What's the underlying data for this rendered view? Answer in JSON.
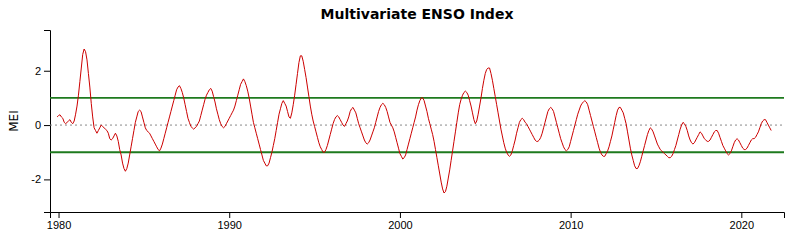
{
  "chart_data": {
    "type": "line",
    "title": "Multivariate ENSO Index",
    "ylabel": "MEI",
    "xlim": [
      1979.5,
      2022.5
    ],
    "ylim": [
      -3.2,
      3.5
    ],
    "xticks": [
      1980,
      1990,
      2000,
      2010,
      2020
    ],
    "yticks": [
      -2,
      0,
      2
    ],
    "grid": false,
    "color": "#cc0000",
    "hlines": [
      {
        "value": 0,
        "color": "#888888",
        "line_style": "dotted"
      },
      {
        "value": 1.0,
        "color": "#1e7a1e",
        "line_style": "solid"
      },
      {
        "value": -1.0,
        "color": "#1e7a1e",
        "line_style": "solid"
      }
    ],
    "x": [
      1979.9167,
      1980,
      1980.0834,
      1980.1667,
      1980.25,
      1980.3334,
      1980.4167,
      1980.5,
      1980.5834,
      1980.6667,
      1980.75,
      1980.8334,
      1980.9167,
      1981,
      1981.0834,
      1981.1667,
      1981.25,
      1981.3334,
      1981.4167,
      1981.5,
      1981.5834,
      1981.6667,
      1981.75,
      1981.8334,
      1981.9167,
      1982,
      1982.0834,
      1982.1667,
      1982.25,
      1982.3334,
      1982.4167,
      1982.5,
      1982.5834,
      1982.6667,
      1982.75,
      1982.8334,
      1982.9167,
      1983,
      1983.0834,
      1983.1667,
      1983.25,
      1983.3334,
      1983.4167,
      1983.5,
      1983.5834,
      1983.6667,
      1983.75,
      1983.8334,
      1983.9167,
      1984,
      1984.0834,
      1984.1667,
      1984.25,
      1984.3334,
      1984.4167,
      1984.5,
      1984.5834,
      1984.6667,
      1984.75,
      1984.8334,
      1984.9167,
      1985,
      1985.0834,
      1985.1667,
      1985.25,
      1985.3334,
      1985.4167,
      1985.5,
      1985.5834,
      1985.6667,
      1985.75,
      1985.8334,
      1985.9167,
      1986,
      1986.0834,
      1986.1667,
      1986.25,
      1986.3334,
      1986.4167,
      1986.5,
      1986.5834,
      1986.6667,
      1986.75,
      1986.8334,
      1986.9167,
      1987,
      1987.0834,
      1987.1667,
      1987.25,
      1987.3334,
      1987.4167,
      1987.5,
      1987.5834,
      1987.6667,
      1987.75,
      1987.8334,
      1987.9167,
      1988,
      1988.0834,
      1988.1667,
      1988.25,
      1988.3334,
      1988.4167,
      1988.5,
      1988.5834,
      1988.6667,
      1988.75,
      1988.8334,
      1988.9167,
      1989,
      1989.0834,
      1989.1667,
      1989.25,
      1989.3334,
      1989.4167,
      1989.5,
      1989.5834,
      1989.6667,
      1989.75,
      1989.8334,
      1989.9167,
      1990,
      1990.0834,
      1990.1667,
      1990.25,
      1990.3334,
      1990.4167,
      1990.5,
      1990.5834,
      1990.6667,
      1990.75,
      1990.8334,
      1990.9167,
      1991,
      1991.0834,
      1991.1667,
      1991.25,
      1991.3334,
      1991.4167,
      1991.5,
      1991.5834,
      1991.6667,
      1991.75,
      1991.8334,
      1991.9167,
      1992,
      1992.0834,
      1992.1667,
      1992.25,
      1992.3334,
      1992.4167,
      1992.5,
      1992.5834,
      1992.6667,
      1992.75,
      1992.8334,
      1992.9167,
      1993,
      1993.0834,
      1993.1667,
      1993.25,
      1993.3334,
      1993.4167,
      1993.5,
      1993.5834,
      1993.6667,
      1993.75,
      1993.8334,
      1993.9167,
      1994,
      1994.0834,
      1994.1667,
      1994.25,
      1994.3334,
      1994.4167,
      1994.5,
      1994.5834,
      1994.6667,
      1994.75,
      1994.8334,
      1994.9167,
      1995,
      1995.0834,
      1995.1667,
      1995.25,
      1995.3334,
      1995.4167,
      1995.5,
      1995.5834,
      1995.6667,
      1995.75,
      1995.8334,
      1995.9167,
      1996,
      1996.0834,
      1996.1667,
      1996.25,
      1996.3334,
      1996.4167,
      1996.5,
      1996.5834,
      1996.6667,
      1996.75,
      1996.8334,
      1996.9167,
      1997,
      1997.0834,
      1997.1667,
      1997.25,
      1997.3334,
      1997.4167,
      1997.5,
      1997.5834,
      1997.6667,
      1997.75,
      1997.8334,
      1997.9167,
      1998,
      1998.0834,
      1998.1667,
      1998.25,
      1998.3334,
      1998.4167,
      1998.5,
      1998.5834,
      1998.6667,
      1998.75,
      1998.8334,
      1998.9167,
      1999,
      1999.0834,
      1999.1667,
      1999.25,
      1999.3334,
      1999.4167,
      1999.5,
      1999.5834,
      1999.6667,
      1999.75,
      1999.8334,
      1999.9167,
      2000,
      2000.0834,
      2000.1667,
      2000.25,
      2000.3334,
      2000.4167,
      2000.5,
      2000.5834,
      2000.6667,
      2000.75,
      2000.8334,
      2000.9167,
      2001,
      2001.0834,
      2001.1667,
      2001.25,
      2001.3334,
      2001.4167,
      2001.5,
      2001.5834,
      2001.6667,
      2001.75,
      2001.8334,
      2001.9167,
      2002,
      2002.0834,
      2002.1667,
      2002.25,
      2002.3334,
      2002.4167,
      2002.5,
      2002.5834,
      2002.6667,
      2002.75,
      2002.8334,
      2002.9167,
      2003,
      2003.0834,
      2003.1667,
      2003.25,
      2003.3334,
      2003.4167,
      2003.5,
      2003.5834,
      2003.6667,
      2003.75,
      2003.8334,
      2003.9167,
      2004,
      2004.0834,
      2004.1667,
      2004.25,
      2004.3334,
      2004.4167,
      2004.5,
      2004.5834,
      2004.6667,
      2004.75,
      2004.8334,
      2004.9167,
      2005,
      2005.0834,
      2005.1667,
      2005.25,
      2005.3334,
      2005.4167,
      2005.5,
      2005.5834,
      2005.6667,
      2005.75,
      2005.8334,
      2005.9167,
      2006,
      2006.0834,
      2006.1667,
      2006.25,
      2006.3334,
      2006.4167,
      2006.5,
      2006.5834,
      2006.6667,
      2006.75,
      2006.8334,
      2006.9167,
      2007,
      2007.0834,
      2007.1667,
      2007.25,
      2007.3334,
      2007.4167,
      2007.5,
      2007.5834,
      2007.6667,
      2007.75,
      2007.8334,
      2007.9167,
      2008,
      2008.0834,
      2008.1667,
      2008.25,
      2008.3334,
      2008.4167,
      2008.5,
      2008.5834,
      2008.6667,
      2008.75,
      2008.8334,
      2008.9167,
      2009,
      2009.0834,
      2009.1667,
      2009.25,
      2009.3334,
      2009.4167,
      2009.5,
      2009.5834,
      2009.6667,
      2009.75,
      2009.8334,
      2009.9167,
      2010,
      2010.0834,
      2010.1667,
      2010.25,
      2010.3334,
      2010.4167,
      2010.5,
      2010.5834,
      2010.6667,
      2010.75,
      2010.8334,
      2010.9167,
      2011,
      2011.0834,
      2011.1667,
      2011.25,
      2011.3334,
      2011.4167,
      2011.5,
      2011.5834,
      2011.6667,
      2011.75,
      2011.8334,
      2011.9167,
      2012,
      2012.0834,
      2012.1667,
      2012.25,
      2012.3334,
      2012.4167,
      2012.5,
      2012.5834,
      2012.6667,
      2012.75,
      2012.8334,
      2012.9167,
      2013,
      2013.0834,
      2013.1667,
      2013.25,
      2013.3334,
      2013.4167,
      2013.5,
      2013.5834,
      2013.6667,
      2013.75,
      2013.8334,
      2013.9167,
      2014,
      2014.0834,
      2014.1667,
      2014.25,
      2014.3334,
      2014.4167,
      2014.5,
      2014.5834,
      2014.6667,
      2014.75,
      2014.8334,
      2014.9167,
      2015,
      2015.0834,
      2015.1667,
      2015.25,
      2015.3334,
      2015.4167,
      2015.5,
      2015.5834,
      2015.6667,
      2015.75,
      2015.8334,
      2015.9167,
      2016,
      2016.0834,
      2016.1667,
      2016.25,
      2016.3334,
      2016.4167,
      2016.5,
      2016.5834,
      2016.6667,
      2016.75,
      2016.8334,
      2016.9167,
      2017,
      2017.0834,
      2017.1667,
      2017.25,
      2017.3334,
      2017.4167,
      2017.5,
      2017.5834,
      2017.6667,
      2017.75,
      2017.8334,
      2017.9167,
      2018,
      2018.0834,
      2018.1667,
      2018.25,
      2018.3334,
      2018.4167,
      2018.5,
      2018.5834,
      2018.6667,
      2018.75,
      2018.8334,
      2018.9167,
      2019,
      2019.0834,
      2019.1667,
      2019.25,
      2019.3334,
      2019.4167,
      2019.5,
      2019.5834,
      2019.6667,
      2019.75,
      2019.8334,
      2019.9167,
      2020,
      2020.0834,
      2020.1667,
      2020.25,
      2020.3334,
      2020.4167,
      2020.5,
      2020.5834,
      2020.6667,
      2020.75,
      2020.8334,
      2020.9167,
      2021,
      2021.0834,
      2021.1667,
      2021.25,
      2021.3334,
      2021.4167,
      2021.5,
      2021.5834,
      2021.6667,
      2021.75
    ],
    "values": [
      0.3,
      0.35,
      0.38,
      0.3,
      0.25,
      0.1,
      0.05,
      0.1,
      0.15,
      0.2,
      0.1,
      0.05,
      0.15,
      0.4,
      0.7,
      1.1,
      1.6,
      2.1,
      2.6,
      2.8,
      2.7,
      2.4,
      1.9,
      1.4,
      0.8,
      0.3,
      -0.1,
      -0.2,
      -0.3,
      -0.2,
      -0.1,
      0.0,
      -0.05,
      -0.1,
      -0.15,
      -0.2,
      -0.3,
      -0.5,
      -0.55,
      -0.5,
      -0.4,
      -0.3,
      -0.4,
      -0.6,
      -0.9,
      -1.1,
      -1.4,
      -1.6,
      -1.7,
      -1.6,
      -1.4,
      -1.1,
      -0.8,
      -0.5,
      -0.2,
      0.1,
      0.3,
      0.5,
      0.55,
      0.5,
      0.3,
      0.1,
      -0.1,
      -0.2,
      -0.25,
      -0.3,
      -0.4,
      -0.5,
      -0.6,
      -0.7,
      -0.8,
      -0.9,
      -0.95,
      -0.85,
      -0.7,
      -0.5,
      -0.3,
      -0.1,
      0.1,
      0.3,
      0.5,
      0.7,
      0.9,
      1.1,
      1.3,
      1.4,
      1.45,
      1.35,
      1.2,
      1.0,
      0.75,
      0.5,
      0.25,
      0.1,
      -0.05,
      -0.1,
      -0.15,
      -0.1,
      -0.05,
      0.05,
      0.15,
      0.35,
      0.55,
      0.75,
      0.95,
      1.1,
      1.2,
      1.3,
      1.35,
      1.25,
      1.05,
      0.85,
      0.6,
      0.4,
      0.2,
      0.05,
      -0.05,
      -0.1,
      -0.05,
      0.05,
      0.15,
      0.25,
      0.35,
      0.45,
      0.55,
      0.7,
      0.9,
      1.1,
      1.3,
      1.5,
      1.6,
      1.7,
      1.6,
      1.45,
      1.25,
      1.0,
      0.7,
      0.4,
      0.1,
      -0.1,
      -0.3,
      -0.5,
      -0.7,
      -0.9,
      -1.1,
      -1.3,
      -1.4,
      -1.5,
      -1.5,
      -1.4,
      -1.2,
      -1.0,
      -0.75,
      -0.5,
      -0.2,
      0.1,
      0.4,
      0.6,
      0.8,
      0.9,
      0.8,
      0.7,
      0.5,
      0.3,
      0.25,
      0.45,
      0.75,
      1.1,
      1.5,
      1.9,
      2.3,
      2.55,
      2.55,
      2.35,
      2.05,
      1.75,
      1.4,
      1.05,
      0.7,
      0.4,
      0.15,
      -0.05,
      -0.25,
      -0.45,
      -0.65,
      -0.8,
      -0.9,
      -1.0,
      -1.0,
      -0.9,
      -0.75,
      -0.55,
      -0.35,
      -0.15,
      0.05,
      0.2,
      0.3,
      0.35,
      0.3,
      0.2,
      0.1,
      0.0,
      -0.05,
      0.05,
      0.15,
      0.3,
      0.5,
      0.6,
      0.65,
      0.55,
      0.45,
      0.25,
      0.05,
      -0.1,
      -0.25,
      -0.4,
      -0.55,
      -0.65,
      -0.7,
      -0.65,
      -0.55,
      -0.4,
      -0.25,
      -0.1,
      0.1,
      0.3,
      0.5,
      0.65,
      0.75,
      0.8,
      0.75,
      0.65,
      0.5,
      0.3,
      0.1,
      0.0,
      -0.1,
      -0.25,
      -0.45,
      -0.65,
      -0.85,
      -1.05,
      -1.15,
      -1.25,
      -1.2,
      -1.1,
      -0.9,
      -0.7,
      -0.5,
      -0.3,
      -0.1,
      0.1,
      0.3,
      0.55,
      0.75,
      0.9,
      1.0,
      1.0,
      0.9,
      0.7,
      0.5,
      0.25,
      0.05,
      -0.15,
      -0.35,
      -0.6,
      -0.9,
      -1.2,
      -1.5,
      -1.8,
      -2.1,
      -2.35,
      -2.5,
      -2.45,
      -2.25,
      -1.95,
      -1.65,
      -1.3,
      -0.95,
      -0.6,
      -0.25,
      0.1,
      0.45,
      0.75,
      0.95,
      1.1,
      1.2,
      1.25,
      1.2,
      1.1,
      0.9,
      0.7,
      0.45,
      0.2,
      0.05,
      0.15,
      0.4,
      0.7,
      1.0,
      1.35,
      1.65,
      1.9,
      2.05,
      2.1,
      2.1,
      1.9,
      1.65,
      1.35,
      1.05,
      0.75,
      0.45,
      0.15,
      -0.15,
      -0.4,
      -0.65,
      -0.85,
      -1.0,
      -1.1,
      -1.15,
      -1.1,
      -0.95,
      -0.75,
      -0.55,
      -0.3,
      -0.1,
      0.1,
      0.2,
      0.25,
      0.2,
      0.1,
      0.05,
      -0.05,
      -0.15,
      -0.25,
      -0.35,
      -0.45,
      -0.55,
      -0.6,
      -0.6,
      -0.55,
      -0.45,
      -0.3,
      -0.1,
      0.1,
      0.3,
      0.5,
      0.6,
      0.65,
      0.6,
      0.5,
      0.3,
      0.1,
      -0.1,
      -0.3,
      -0.5,
      -0.65,
      -0.8,
      -0.9,
      -0.95,
      -0.9,
      -0.8,
      -0.6,
      -0.4,
      -0.2,
      0.0,
      0.2,
      0.4,
      0.55,
      0.7,
      0.8,
      0.85,
      0.9,
      0.85,
      0.75,
      0.55,
      0.35,
      0.15,
      -0.05,
      -0.25,
      -0.45,
      -0.65,
      -0.85,
      -1.0,
      -1.1,
      -1.15,
      -1.15,
      -1.05,
      -0.95,
      -0.8,
      -0.6,
      -0.4,
      -0.15,
      0.1,
      0.35,
      0.55,
      0.65,
      0.65,
      0.55,
      0.45,
      0.25,
      0.05,
      -0.25,
      -0.55,
      -0.85,
      -1.1,
      -1.3,
      -1.5,
      -1.6,
      -1.6,
      -1.5,
      -1.35,
      -1.15,
      -0.95,
      -0.75,
      -0.55,
      -0.35,
      -0.2,
      -0.1,
      -0.15,
      -0.25,
      -0.4,
      -0.55,
      -0.7,
      -0.8,
      -0.9,
      -0.95,
      -1.0,
      -1.05,
      -1.1,
      -1.15,
      -1.2,
      -1.2,
      -1.15,
      -1.05,
      -0.9,
      -0.75,
      -0.55,
      -0.35,
      -0.15,
      0.0,
      0.1,
      0.05,
      -0.05,
      -0.2,
      -0.4,
      -0.55,
      -0.65,
      -0.7,
      -0.65,
      -0.55,
      -0.45,
      -0.35,
      -0.25,
      -0.3,
      -0.4,
      -0.5,
      -0.55,
      -0.6,
      -0.6,
      -0.55,
      -0.45,
      -0.35,
      -0.25,
      -0.2,
      -0.2,
      -0.3,
      -0.45,
      -0.6,
      -0.75,
      -0.85,
      -0.95,
      -1.05,
      -1.1,
      -1.05,
      -0.95,
      -0.8,
      -0.65,
      -0.55,
      -0.5,
      -0.55,
      -0.65,
      -0.75,
      -0.85,
      -0.9,
      -0.9,
      -0.85,
      -0.75,
      -0.65,
      -0.55,
      -0.5,
      -0.5,
      -0.45,
      -0.35,
      -0.25,
      -0.1,
      0.05,
      0.15,
      0.2,
      0.2,
      0.1,
      0.0,
      -0.1,
      -0.2
    ]
  }
}
